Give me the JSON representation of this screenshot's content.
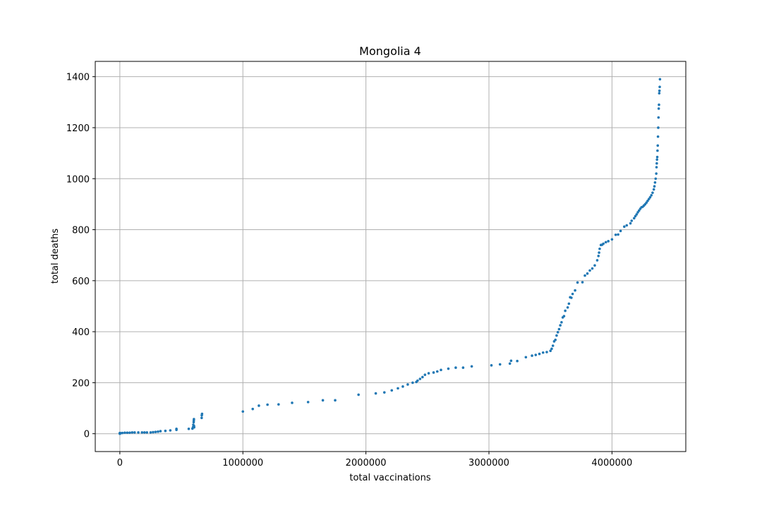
{
  "chart_data": {
    "type": "scatter",
    "title": "Mongolia 4",
    "xlabel": "total vaccinations",
    "ylabel": "total deaths",
    "xlim": [
      -200000,
      4600000
    ],
    "ylim": [
      -70,
      1460
    ],
    "xticks": [
      0,
      1000000,
      2000000,
      3000000,
      4000000
    ],
    "xtick_labels": [
      "0",
      "1000000",
      "2000000",
      "3000000",
      "4000000"
    ],
    "yticks": [
      0,
      200,
      400,
      600,
      800,
      1000,
      1200,
      1400
    ],
    "ytick_labels": [
      "0",
      "200",
      "400",
      "600",
      "800",
      "1000",
      "1200",
      "1400"
    ],
    "grid": true,
    "marker_color": "#1f77b4",
    "series": [
      {
        "x": [
          0,
          0,
          0,
          0,
          5000,
          20000,
          40000,
          60000,
          80000,
          100000,
          120000,
          150000,
          180000,
          200000,
          220000,
          250000,
          270000,
          290000,
          310000,
          330000,
          370000,
          410000,
          460000,
          460000,
          560000,
          590000,
          595000,
          597000,
          600000,
          601000,
          602000,
          603000,
          604000,
          665000,
          666000,
          668000,
          1000000,
          1080000,
          1130000,
          1200000,
          1290000,
          1400000,
          1530000,
          1650000,
          1750000,
          1940000,
          2080000,
          2150000,
          2210000,
          2260000,
          2300000,
          2340000,
          2380000,
          2410000,
          2420000,
          2440000,
          2460000,
          2480000,
          2510000,
          2550000,
          2580000,
          2610000,
          2670000,
          2730000,
          2790000,
          2860000,
          3020000,
          3090000,
          3170000,
          3180000,
          3230000,
          3300000,
          3350000,
          3380000,
          3410000,
          3440000,
          3470000,
          3500000,
          3510000,
          3520000,
          3530000,
          3540000,
          3550000,
          3560000,
          3570000,
          3580000,
          3590000,
          3600000,
          3610000,
          3620000,
          3640000,
          3650000,
          3660000,
          3670000,
          3680000,
          3700000,
          3720000,
          3760000,
          3780000,
          3800000,
          3820000,
          3840000,
          3860000,
          3880000,
          3890000,
          3895000,
          3900000,
          3910000,
          3920000,
          3930000,
          3950000,
          3970000,
          4000000,
          4030000,
          4050000,
          4070000,
          4100000,
          4120000,
          4150000,
          4160000,
          4180000,
          4190000,
          4200000,
          4210000,
          4220000,
          4230000,
          4240000,
          4250000,
          4260000,
          4270000,
          4280000,
          4290000,
          4300000,
          4310000,
          4320000,
          4330000,
          4340000,
          4345000,
          4350000,
          4355000,
          4360000,
          4362000,
          4364000,
          4366000,
          4368000,
          4370000,
          4372000,
          4374000,
          4376000,
          4378000,
          4380000,
          4382000,
          4384000,
          4386000,
          4388000,
          4390000
        ],
        "y": [
          0,
          1,
          2,
          3,
          2,
          3,
          4,
          4,
          4,
          5,
          5,
          5,
          5,
          5,
          5,
          5,
          6,
          7,
          8,
          10,
          11,
          13,
          15,
          19,
          19,
          20,
          26,
          35,
          45,
          51,
          57,
          30,
          25,
          62,
          72,
          78,
          87,
          97,
          110,
          114,
          115,
          121,
          124,
          131,
          131,
          153,
          158,
          162,
          170,
          178,
          185,
          193,
          200,
          203,
          208,
          215,
          222,
          231,
          237,
          240,
          244,
          250,
          255,
          259,
          259,
          264,
          268,
          272,
          275,
          286,
          285,
          300,
          306,
          309,
          313,
          318,
          320,
          325,
          333,
          345,
          362,
          368,
          385,
          398,
          410,
          425,
          437,
          456,
          461,
          482,
          495,
          510,
          535,
          533,
          548,
          562,
          593,
          594,
          620,
          628,
          640,
          648,
          660,
          680,
          697,
          710,
          725,
          740,
          741,
          745,
          751,
          755,
          762,
          780,
          781,
          795,
          812,
          817,
          825,
          835,
          845,
          853,
          860,
          868,
          875,
          882,
          888,
          890,
          895,
          900,
          906,
          913,
          920,
          927,
          935,
          945,
          958,
          970,
          985,
          1000,
          1020,
          1045,
          1060,
          1075,
          1085,
          1110,
          1130,
          1165,
          1200,
          1240,
          1275,
          1290,
          1335,
          1345,
          1360,
          1390
        ]
      }
    ]
  }
}
